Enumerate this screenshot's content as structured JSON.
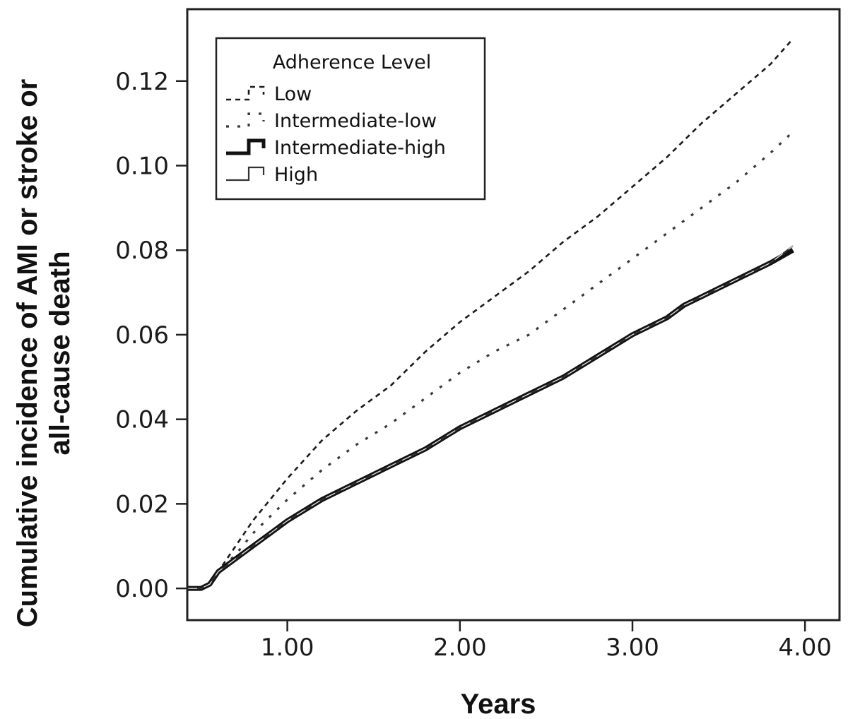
{
  "chart_data": {
    "type": "line",
    "title": "",
    "xlabel": "Years",
    "ylabel_lines": [
      "Cumulative incidence of AMI or stroke or",
      "all-cause death"
    ],
    "xlim": [
      0.42,
      4.2
    ],
    "ylim": [
      -0.0075,
      0.137
    ],
    "x_ticks": [
      1.0,
      2.0,
      3.0,
      4.0
    ],
    "x_tick_labels": [
      "1.00",
      "2.00",
      "3.00",
      "4.00"
    ],
    "y_ticks": [
      0.0,
      0.02,
      0.04,
      0.06,
      0.08,
      0.1,
      0.12
    ],
    "y_tick_labels": [
      "0.00",
      "0.02",
      "0.04",
      "0.06",
      "0.08",
      "0.10",
      "0.12"
    ],
    "grid": false,
    "legend": {
      "title": "Adherence Level",
      "position": "top-left"
    },
    "series": [
      {
        "name": "Low",
        "style": "dashed",
        "color": "#1a1a1a",
        "points": [
          [
            0.42,
            0.0
          ],
          [
            0.5,
            0.0
          ],
          [
            0.55,
            0.001
          ],
          [
            0.6,
            0.004
          ],
          [
            0.7,
            0.01
          ],
          [
            0.8,
            0.016
          ],
          [
            0.9,
            0.021
          ],
          [
            1.0,
            0.026
          ],
          [
            1.2,
            0.035
          ],
          [
            1.4,
            0.042
          ],
          [
            1.6,
            0.048
          ],
          [
            1.8,
            0.056
          ],
          [
            2.0,
            0.063
          ],
          [
            2.2,
            0.069
          ],
          [
            2.4,
            0.075
          ],
          [
            2.6,
            0.082
          ],
          [
            2.8,
            0.088
          ],
          [
            3.0,
            0.095
          ],
          [
            3.2,
            0.102
          ],
          [
            3.4,
            0.11
          ],
          [
            3.6,
            0.117
          ],
          [
            3.8,
            0.124
          ],
          [
            3.93,
            0.13
          ]
        ]
      },
      {
        "name": "Intermediate-low",
        "style": "dotted",
        "color": "#3a3a3a",
        "points": [
          [
            0.42,
            0.0
          ],
          [
            0.5,
            0.0
          ],
          [
            0.55,
            0.001
          ],
          [
            0.6,
            0.004
          ],
          [
            0.7,
            0.008
          ],
          [
            0.8,
            0.013
          ],
          [
            0.9,
            0.017
          ],
          [
            1.0,
            0.021
          ],
          [
            1.2,
            0.028
          ],
          [
            1.4,
            0.034
          ],
          [
            1.6,
            0.039
          ],
          [
            1.8,
            0.045
          ],
          [
            2.0,
            0.051
          ],
          [
            2.2,
            0.056
          ],
          [
            2.4,
            0.06
          ],
          [
            2.6,
            0.066
          ],
          [
            2.8,
            0.072
          ],
          [
            3.0,
            0.078
          ],
          [
            3.2,
            0.084
          ],
          [
            3.4,
            0.09
          ],
          [
            3.6,
            0.096
          ],
          [
            3.8,
            0.103
          ],
          [
            3.93,
            0.108
          ]
        ]
      },
      {
        "name": "Intermediate-high",
        "style": "thick-solid",
        "color": "#111111",
        "points": [
          [
            0.42,
            0.0
          ],
          [
            0.5,
            0.0
          ],
          [
            0.55,
            0.001
          ],
          [
            0.6,
            0.004
          ],
          [
            0.7,
            0.007
          ],
          [
            0.8,
            0.01
          ],
          [
            0.9,
            0.013
          ],
          [
            1.0,
            0.016
          ],
          [
            1.2,
            0.021
          ],
          [
            1.4,
            0.025
          ],
          [
            1.6,
            0.029
          ],
          [
            1.8,
            0.033
          ],
          [
            2.0,
            0.038
          ],
          [
            2.2,
            0.042
          ],
          [
            2.4,
            0.046
          ],
          [
            2.6,
            0.05
          ],
          [
            2.8,
            0.055
          ],
          [
            3.0,
            0.06
          ],
          [
            3.2,
            0.064
          ],
          [
            3.3,
            0.067
          ],
          [
            3.4,
            0.069
          ],
          [
            3.6,
            0.073
          ],
          [
            3.8,
            0.077
          ],
          [
            3.93,
            0.08
          ]
        ]
      },
      {
        "name": "High",
        "style": "solid",
        "color": "#333333",
        "points": [
          [
            0.42,
            0.0
          ],
          [
            0.5,
            0.0
          ],
          [
            0.55,
            0.001
          ],
          [
            0.6,
            0.004
          ],
          [
            0.7,
            0.007
          ],
          [
            0.8,
            0.01
          ],
          [
            0.9,
            0.013
          ],
          [
            1.0,
            0.016
          ],
          [
            1.2,
            0.021
          ],
          [
            1.4,
            0.025
          ],
          [
            1.6,
            0.029
          ],
          [
            1.8,
            0.033
          ],
          [
            2.0,
            0.038
          ],
          [
            2.2,
            0.042
          ],
          [
            2.4,
            0.046
          ],
          [
            2.6,
            0.05
          ],
          [
            2.8,
            0.055
          ],
          [
            3.0,
            0.06
          ],
          [
            3.2,
            0.064
          ],
          [
            3.3,
            0.067
          ],
          [
            3.4,
            0.069
          ],
          [
            3.6,
            0.073
          ],
          [
            3.8,
            0.077
          ],
          [
            3.93,
            0.081
          ]
        ]
      }
    ]
  }
}
